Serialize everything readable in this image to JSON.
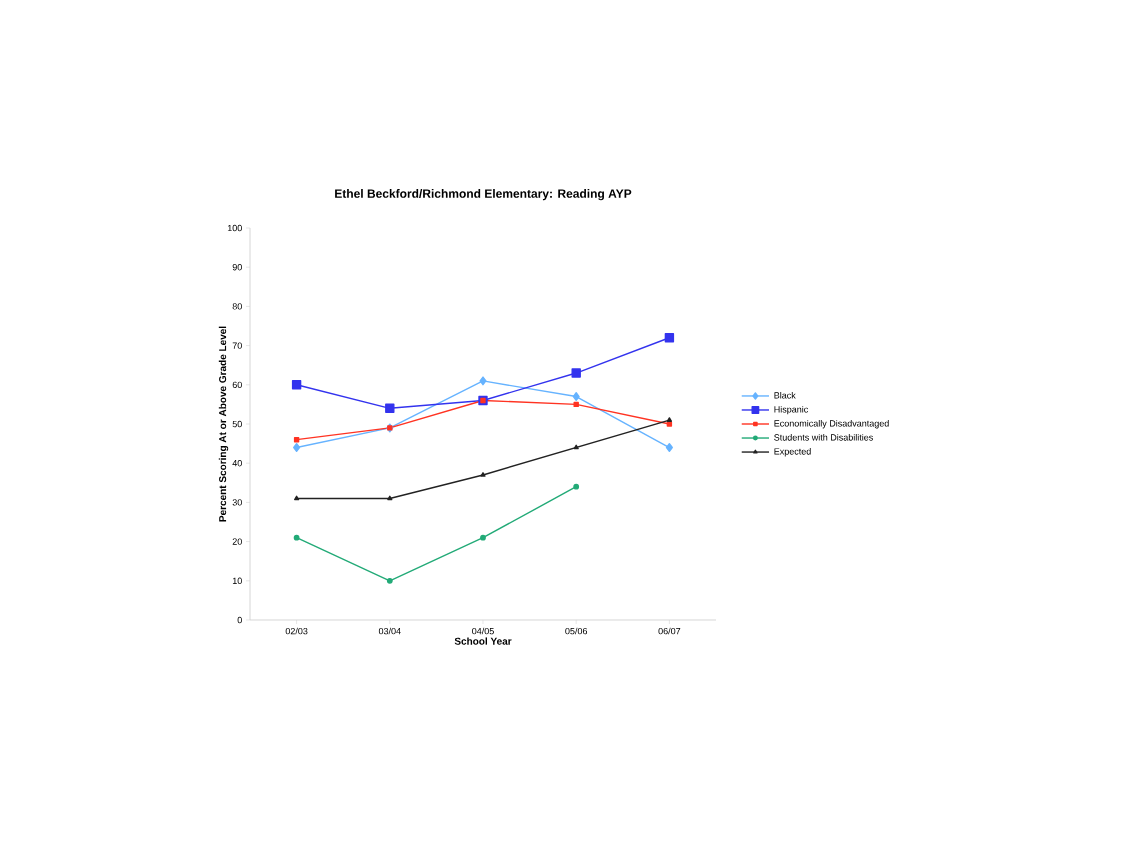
{
  "chart_data": {
    "type": "line",
    "title": "Ethel Beckford/Richmond Elementary:  Reading AYP",
    "xlabel": "School Year",
    "ylabel": "Percent Scoring At or Above Grade Level",
    "categories": [
      "02/03",
      "03/04",
      "04/05",
      "05/06",
      "06/07"
    ],
    "ylim": [
      0,
      100
    ],
    "yticks": [
      0,
      10,
      20,
      30,
      40,
      50,
      60,
      70,
      80,
      90,
      100
    ],
    "grid": false,
    "legend": "right",
    "line_style": "solid",
    "series": [
      {
        "name": "Black",
        "color": "#66b3ff",
        "marker": "diamond",
        "values": [
          44,
          49,
          61,
          57,
          44
        ]
      },
      {
        "name": "Hispanic",
        "color": "#3333ee",
        "marker": "square",
        "values": [
          60,
          54,
          56,
          63,
          72
        ]
      },
      {
        "name": "Economically Disadvantaged",
        "color": "#ff3322",
        "marker": "square",
        "values": [
          46,
          49,
          56,
          55,
          50
        ]
      },
      {
        "name": "Students with Disabilities",
        "color": "#22aa77",
        "marker": "circle",
        "values": [
          21,
          10,
          21,
          34,
          null
        ]
      },
      {
        "name": "Expected",
        "color": "#222222",
        "marker": "triangle",
        "values": [
          31,
          31,
          37,
          44,
          51
        ]
      }
    ]
  }
}
